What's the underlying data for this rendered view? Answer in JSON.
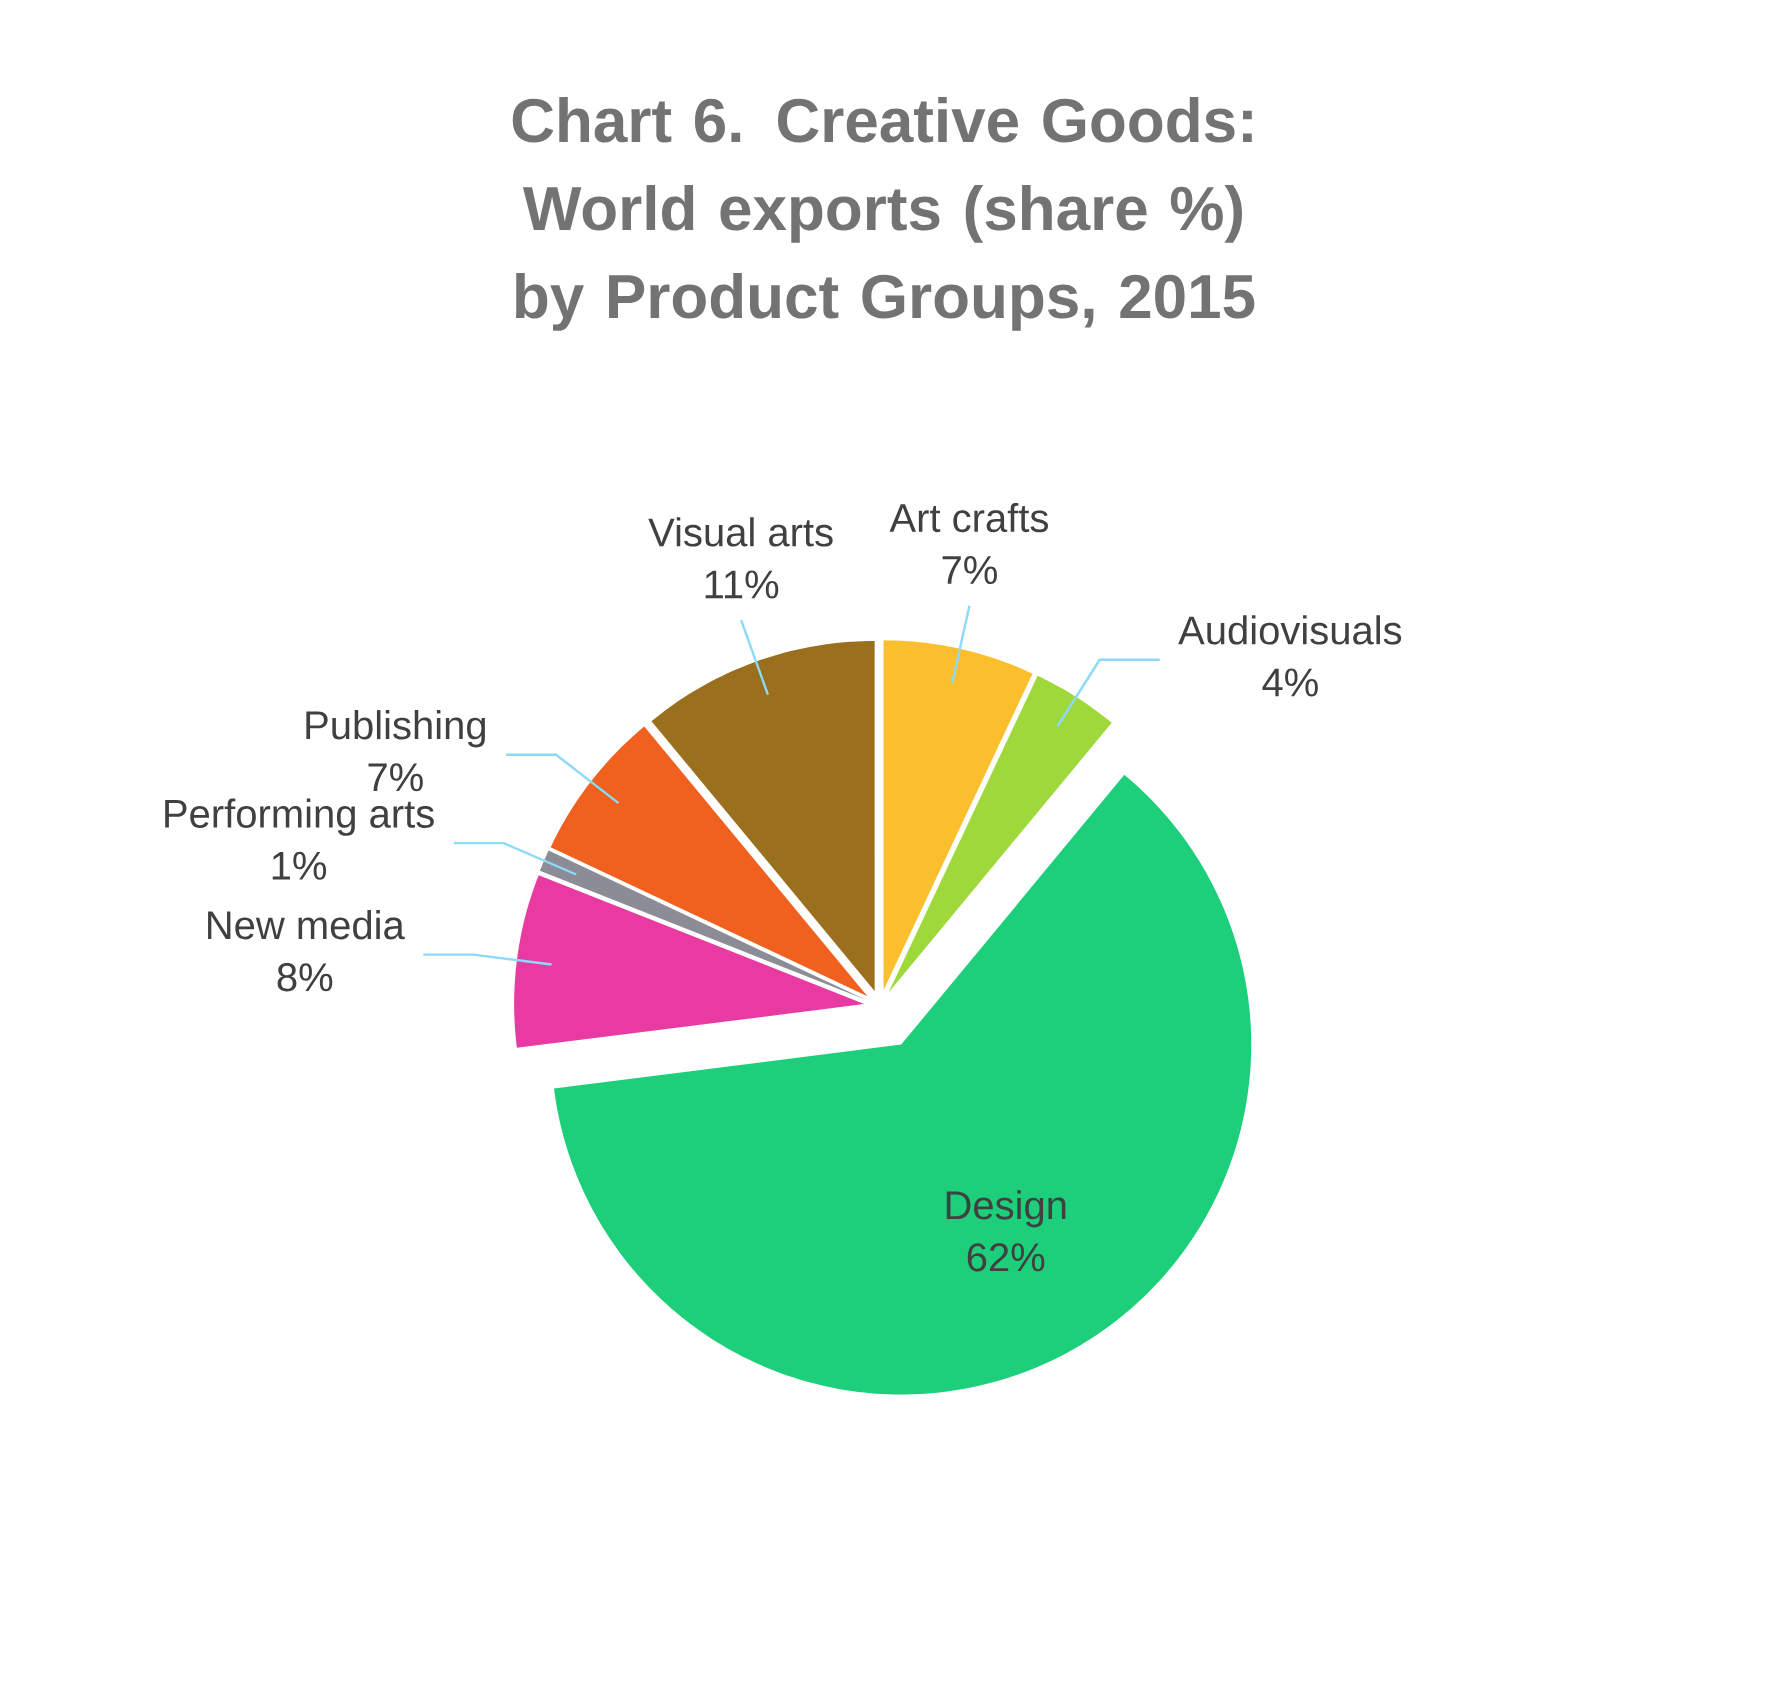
{
  "chart_data": {
    "type": "pie",
    "title": "Chart 6.  Creative Goods: World exports (share %) by Product Groups, 2015",
    "categories": [
      "Art crafts",
      "Audiovisuals",
      "Design",
      "New media",
      "Performing arts",
      "Publishing",
      "Visual arts"
    ],
    "values": [
      7,
      4,
      62,
      8,
      1,
      7,
      11
    ],
    "colors": [
      "#fbbf2e",
      "#9fd83a",
      "#1dcf7a",
      "#e83aa0",
      "#8c8c96",
      "#f0601e",
      "#9a6f1e"
    ],
    "value_labels": [
      "7%",
      "4%",
      "62%",
      "8%",
      "1%",
      "7%",
      "11%"
    ]
  }
}
